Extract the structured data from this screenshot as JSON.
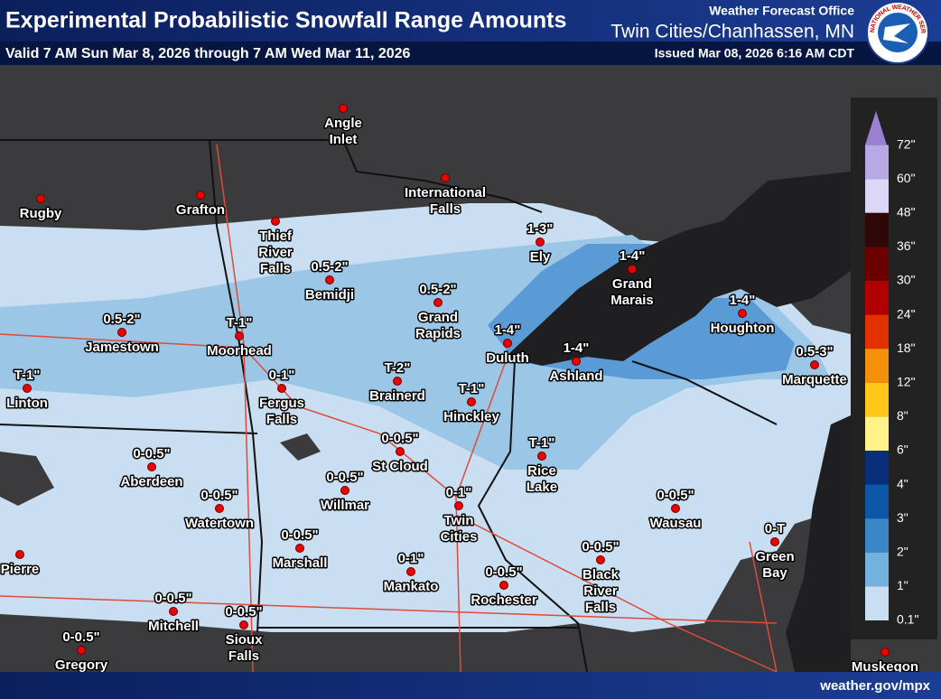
{
  "header": {
    "title": "Experimental Probabilistic Snowfall Range Amounts",
    "valid": "Valid 7 AM Sun Mar 8, 2026 through 7 AM Wed Mar 11, 2026",
    "office": "Weather Forecast Office",
    "office_name": "Twin Cities/Chanhassen, MN",
    "issued": "Issued Mar 08, 2026 6:16 AM CDT",
    "logo_text": "NATIONAL WEATHER SERVICE"
  },
  "legend": [
    {
      "label": "72\"",
      "color": "#9b7fd0"
    },
    {
      "label": "60\"",
      "color": "#b9a8e6"
    },
    {
      "label": "48\"",
      "color": "#dcd6f7"
    },
    {
      "label": "36\"",
      "color": "#2e0808"
    },
    {
      "label": "30\"",
      "color": "#6b0000"
    },
    {
      "label": "24\"",
      "color": "#b00000"
    },
    {
      "label": "18\"",
      "color": "#e23000"
    },
    {
      "label": "12\"",
      "color": "#f5900a"
    },
    {
      "label": "8\"",
      "color": "#ffc71a"
    },
    {
      "label": "6\"",
      "color": "#fff288"
    },
    {
      "label": "4\"",
      "color": "#0a2f7a"
    },
    {
      "label": "3\"",
      "color": "#0c57a8"
    },
    {
      "label": "2\"",
      "color": "#3a86c6"
    },
    {
      "label": "1\"",
      "color": "#73b1de"
    },
    {
      "label": "0.1\"",
      "color": "#c9def0"
    }
  ],
  "cities": [
    {
      "name": [
        "Angle",
        "Inlet"
      ]
    },
    {
      "name": [
        "International",
        "Falls"
      ]
    },
    {
      "name": [
        "Rugby"
      ]
    },
    {
      "name": [
        "Grafton"
      ]
    },
    {
      "name": [
        "Thief",
        "River",
        "Falls"
      ]
    },
    {
      "name": [
        "Bemidji"
      ],
      "amount": "0.5-2\""
    },
    {
      "name": [
        "Grand",
        "Rapids"
      ],
      "amount": "0.5-2\""
    },
    {
      "name": [
        "Ely"
      ],
      "amount": "1-3\""
    },
    {
      "name": [
        "Grand",
        "Marais"
      ],
      "amount": "1-4\""
    },
    {
      "name": [
        "Houghton"
      ],
      "amount": "1-4\""
    },
    {
      "name": [
        "Duluth"
      ],
      "amount": "1-4\""
    },
    {
      "name": [
        "Ashland"
      ],
      "amount": "1-4\""
    },
    {
      "name": [
        "Marquette"
      ],
      "amount": "0.5-3\""
    },
    {
      "name": [
        "Jamestown"
      ],
      "amount": "0.5-2\""
    },
    {
      "name": [
        "Moorhead"
      ],
      "amount": "T-1\""
    },
    {
      "name": [
        "Linton"
      ],
      "amount": "T-1\""
    },
    {
      "name": [
        "Fergus",
        "Falls"
      ],
      "amount": "0-1\""
    },
    {
      "name": [
        "Brainerd"
      ],
      "amount": "T-2\""
    },
    {
      "name": [
        "Hinckley"
      ],
      "amount": "T-1\""
    },
    {
      "name": [
        "Rice",
        "Lake"
      ],
      "amount": "T-1\""
    },
    {
      "name": [
        "Aberdeen"
      ],
      "amount": "0-0.5\""
    },
    {
      "name": [
        "Watertown"
      ],
      "amount": "0-0.5\""
    },
    {
      "name": [
        "St Cloud"
      ],
      "amount": "0-0.5\""
    },
    {
      "name": [
        "Willmar"
      ],
      "amount": "0-0.5\""
    },
    {
      "name": [
        "Twin",
        "Cities"
      ],
      "amount": "0-1\""
    },
    {
      "name": [
        "Wausau"
      ],
      "amount": "0-0.5\""
    },
    {
      "name": [
        "Green",
        "Bay"
      ],
      "amount": "0-T"
    },
    {
      "name": [
        "Marshall"
      ],
      "amount": "0-0.5\""
    },
    {
      "name": [
        "Mankato"
      ],
      "amount": "0-1\""
    },
    {
      "name": [
        "Rochester"
      ],
      "amount": "0-0.5\""
    },
    {
      "name": [
        "Black",
        "River",
        "Falls"
      ],
      "amount": "0-0.5\""
    },
    {
      "name": [
        "Mitchell"
      ],
      "amount": "0-0.5\""
    },
    {
      "name": [
        "Sioux",
        "Falls"
      ],
      "amount": "0-0.5\""
    },
    {
      "name": [
        "Gregory"
      ],
      "amount": "0-0.5\""
    },
    {
      "name": [
        "Pierre"
      ]
    },
    {
      "name": [
        "Muskegon"
      ]
    }
  ],
  "footer": "weather.gov/mpx"
}
